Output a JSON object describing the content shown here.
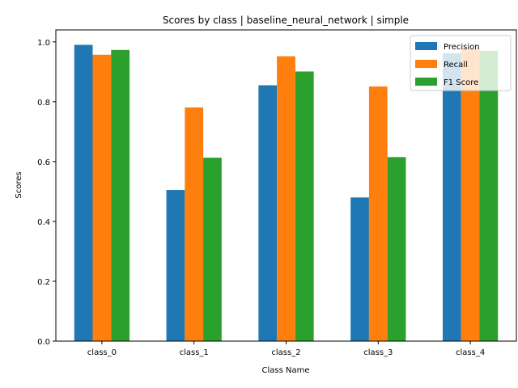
{
  "chart_data": {
    "type": "bar",
    "title": "Scores by class | baseline_neural_network | simple",
    "xlabel": "Class Name",
    "ylabel": "Scores",
    "categories": [
      "class_0",
      "class_1",
      "class_2",
      "class_3",
      "class_4"
    ],
    "ylim": [
      0,
      1.04
    ],
    "yticks": [
      "0.0",
      "0.2",
      "0.4",
      "0.6",
      "0.8",
      "1.0"
    ],
    "grid": false,
    "legend_position": "top-right",
    "series": [
      {
        "name": "Precision",
        "color": "#1f77b4",
        "values": [
          0.99,
          0.505,
          0.855,
          0.48,
          0.962
        ]
      },
      {
        "name": "Recall",
        "color": "#ff7f0e",
        "values": [
          0.957,
          0.781,
          0.952,
          0.851,
          0.978
        ]
      },
      {
        "name": "F1 Score",
        "color": "#2ca02c",
        "values": [
          0.973,
          0.613,
          0.901,
          0.615,
          0.97
        ]
      }
    ]
  }
}
